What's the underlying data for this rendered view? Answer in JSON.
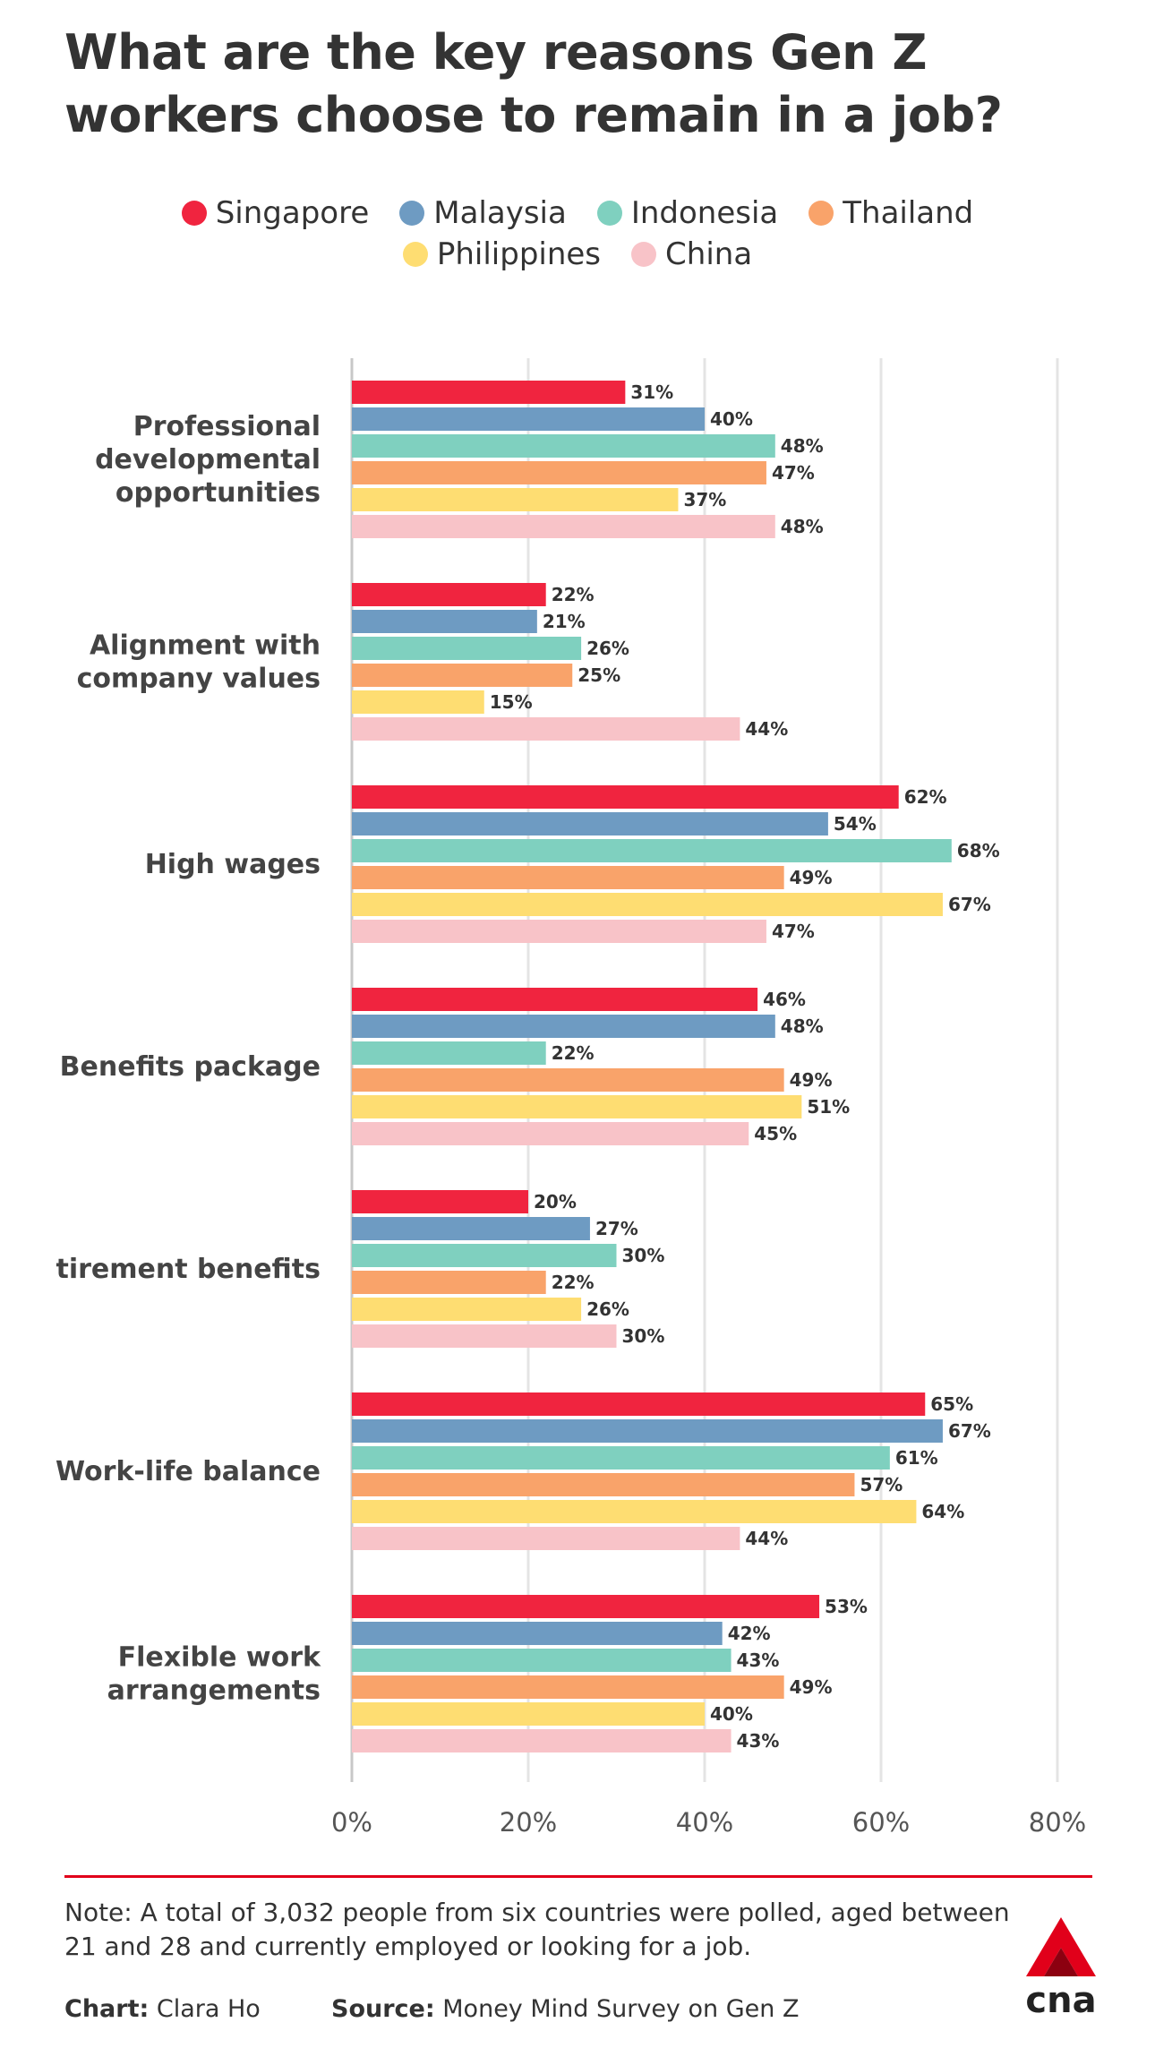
{
  "title": "What are the key reasons Gen Z workers choose to remain in a job?",
  "colors": {
    "Singapore": "#f0243f",
    "Malaysia": "#6e9bc2",
    "Indonesia": "#7fd0bf",
    "Thailand": "#f9a36a",
    "Philippines": "#fedd72",
    "China": "#f8c3c8",
    "rule": "#e1001a"
  },
  "chart_data": {
    "type": "bar",
    "orientation": "horizontal",
    "title": "What are the key reasons Gen Z workers choose to remain in a job?",
    "xlim": [
      0,
      80
    ],
    "xticks": [
      "0%",
      "20%",
      "40%",
      "60%",
      "80%"
    ],
    "legend_position": "top-center",
    "grid": true,
    "categories": [
      "Professional developmental opportunities",
      "Alignment with company values",
      "High wages",
      "Benefits package",
      "Retirement benefits",
      "Work-life balance",
      "Flexible work arrangements"
    ],
    "category_lines": [
      [
        "Professional",
        "developmental",
        "opportunities"
      ],
      [
        "Alignment with",
        "company values"
      ],
      [
        "High wages"
      ],
      [
        "Benefits package"
      ],
      [
        "tirement benefits"
      ],
      [
        "Work-life balance"
      ],
      [
        "Flexible work",
        "arrangements"
      ]
    ],
    "series": [
      {
        "name": "Singapore",
        "values": [
          31,
          22,
          62,
          46,
          20,
          65,
          53
        ],
        "labels": [
          "31%",
          "22%",
          "62%",
          "46%",
          "20%",
          "65%",
          "53%"
        ]
      },
      {
        "name": "Malaysia",
        "values": [
          40,
          21,
          54,
          48,
          27,
          67,
          42
        ],
        "labels": [
          "40%",
          "21%",
          "54%",
          "48%",
          "27%",
          "67%",
          "42%"
        ]
      },
      {
        "name": "Indonesia",
        "values": [
          48,
          26,
          68,
          22,
          30,
          61,
          43
        ],
        "labels": [
          "48%",
          "26%",
          "68%",
          "22%",
          "30%",
          "61%",
          "43%"
        ]
      },
      {
        "name": "Thailand",
        "values": [
          47,
          25,
          49,
          49,
          22,
          57,
          49
        ],
        "labels": [
          "47%",
          "25%",
          "49%",
          "49%",
          "22%",
          "57%",
          "49%"
        ]
      },
      {
        "name": "Philippines",
        "values": [
          37,
          15,
          67,
          51,
          26,
          64,
          40
        ],
        "labels": [
          "37%",
          "15%",
          "67%",
          "51%",
          "26%",
          "64%",
          "40%"
        ]
      },
      {
        "name": "China",
        "values": [
          48,
          44,
          47,
          45,
          30,
          44,
          43
        ],
        "labels": [
          "48%",
          "44%",
          "47%",
          "45%",
          "30%",
          "44%",
          "43%"
        ]
      }
    ]
  },
  "note": "Note: A total of 3,032 people from six countries were polled, aged between 21 and 28 and currently employed or looking for a job.",
  "credits": {
    "chart_label": "Chart:",
    "chart_author": "Clara Ho",
    "source_label": "Source:",
    "source_name": "Money Mind Survey on Gen Z"
  },
  "logo_text": "cna"
}
